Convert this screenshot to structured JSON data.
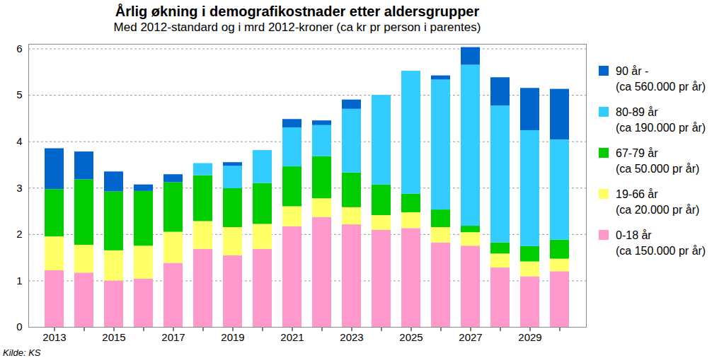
{
  "chart_data": {
    "type": "bar",
    "stacked": true,
    "title": "Årlig økning i demografikostnader etter aldersgrupper",
    "subtitle": "Med 2012-standard og i mrd 2012-kroner (ca kr pr person i parentes)",
    "source": "Kilde: KS",
    "categories": [
      "2013",
      null,
      "2015",
      null,
      "2017",
      null,
      "2019",
      null,
      "2021",
      null,
      "2023",
      null,
      "2025",
      null,
      "2027",
      null,
      "2029",
      null
    ],
    "series": [
      {
        "name": "0-18 år\n(ca 150.000 pr år)",
        "color": "#ff99cc",
        "values": [
          1.22,
          1.17,
          1.0,
          1.04,
          1.38,
          1.68,
          1.54,
          1.68,
          2.17,
          2.37,
          2.21,
          2.09,
          2.13,
          1.82,
          1.75,
          1.28,
          1.09,
          1.2
        ]
      },
      {
        "name": "19-66 år\n(ca 20.000 pr år)",
        "color": "#ffff66",
        "values": [
          0.73,
          0.6,
          0.65,
          0.71,
          0.67,
          0.6,
          0.61,
          0.54,
          0.43,
          0.4,
          0.37,
          0.32,
          0.34,
          0.33,
          0.29,
          0.3,
          0.32,
          0.27
        ]
      },
      {
        "name": "67-79 år\n(ca 50.000 pr år)",
        "color": "#00cc00",
        "values": [
          1.02,
          1.41,
          1.27,
          1.18,
          1.07,
          0.99,
          0.84,
          0.88,
          0.86,
          0.91,
          0.75,
          0.66,
          0.4,
          0.38,
          0.14,
          0.24,
          0.33,
          0.41
        ]
      },
      {
        "name": "80-89 år\n(ca 190.000 pr år)",
        "color": "#33ccff",
        "values": [
          0,
          0,
          0,
          0,
          0,
          0.26,
          0.48,
          0.71,
          0.84,
          0.67,
          1.37,
          1.93,
          2.65,
          2.8,
          3.47,
          2.95,
          2.5,
          2.16
        ]
      },
      {
        "name": "90 år -\n(ca 560.000 pr år)",
        "color": "#0066cc",
        "values": [
          0.88,
          0.6,
          0.43,
          0.14,
          0.17,
          0,
          0.08,
          0,
          0.18,
          0.1,
          0.2,
          0,
          0,
          0.09,
          0.38,
          0.61,
          0.91,
          1.09
        ]
      }
    ],
    "ylim": [
      0,
      6.1
    ],
    "yticks": [
      0,
      1,
      2,
      3,
      4,
      5,
      6
    ],
    "grid": true,
    "legend": "right"
  }
}
